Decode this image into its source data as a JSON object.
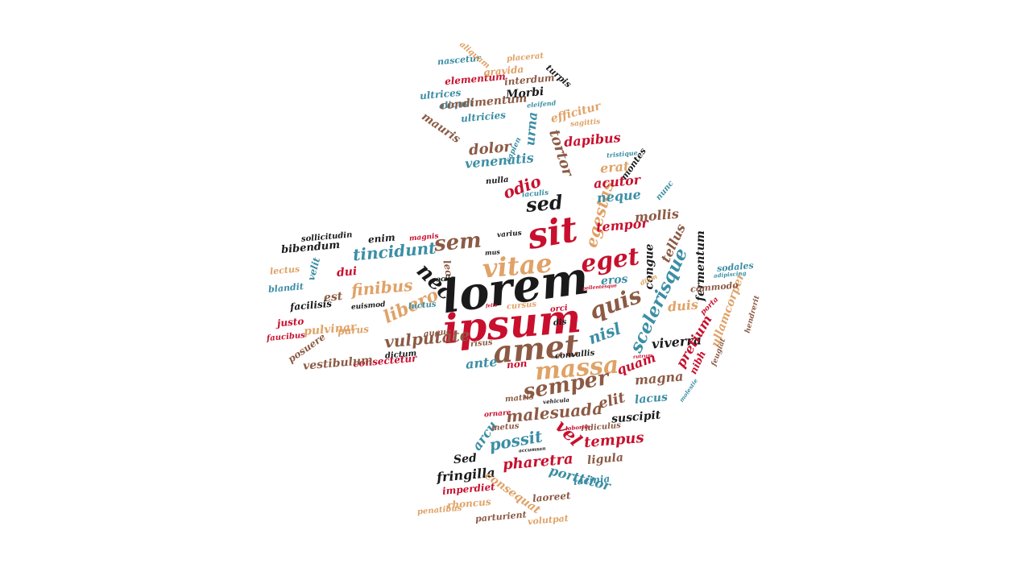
{
  "palette": {
    "red": "#c8102e",
    "brown": "#8c5a44",
    "tan": "#e0a266",
    "teal": "#3b8ea5",
    "black": "#1a1a1a"
  },
  "shape": "arrow-right",
  "words": [
    {
      "text": "lorem",
      "color": "black"
    },
    {
      "text": "ipsum",
      "color": "red"
    },
    {
      "text": "sit",
      "color": "red"
    },
    {
      "text": "amet",
      "color": "brown"
    },
    {
      "text": "vitae",
      "color": "tan"
    },
    {
      "text": "eget",
      "color": "red"
    },
    {
      "text": "sem",
      "color": "brown"
    },
    {
      "text": "nec",
      "color": "black"
    },
    {
      "text": "massa",
      "color": "tan"
    },
    {
      "text": "quis",
      "color": "brown"
    },
    {
      "text": "sed",
      "color": "black"
    },
    {
      "text": "semper",
      "color": "brown"
    },
    {
      "text": "libero",
      "color": "tan"
    },
    {
      "text": "vulputate",
      "color": "brown"
    },
    {
      "text": "tincidunt",
      "color": "teal"
    },
    {
      "text": "finibus",
      "color": "tan"
    },
    {
      "text": "nisl",
      "color": "teal"
    },
    {
      "text": "scelerisque",
      "color": "teal"
    },
    {
      "text": "egestas",
      "color": "tan"
    },
    {
      "text": "tortor",
      "color": "brown"
    },
    {
      "text": "odio",
      "color": "red"
    },
    {
      "text": "dolor",
      "color": "brown"
    },
    {
      "text": "venenatis",
      "color": "teal"
    },
    {
      "text": "dapibus",
      "color": "red"
    },
    {
      "text": "erat",
      "color": "tan"
    },
    {
      "text": "acutor",
      "color": "red"
    },
    {
      "text": "neque",
      "color": "teal"
    },
    {
      "text": "tempor",
      "color": "red"
    },
    {
      "text": "mollis",
      "color": "brown"
    },
    {
      "text": "tellus",
      "color": "brown"
    },
    {
      "text": "congue",
      "color": "black"
    },
    {
      "text": "fermentum",
      "color": "black"
    },
    {
      "text": "duis",
      "color": "tan"
    },
    {
      "text": "eros",
      "color": "teal"
    },
    {
      "text": "quam",
      "color": "red"
    },
    {
      "text": "viverra",
      "color": "black"
    },
    {
      "text": "magna",
      "color": "brown"
    },
    {
      "text": "pretium",
      "color": "red"
    },
    {
      "text": "nibh",
      "color": "red"
    },
    {
      "text": "ullamcorper",
      "color": "tan"
    },
    {
      "text": "elit",
      "color": "brown"
    },
    {
      "text": "malesuada",
      "color": "brown"
    },
    {
      "text": "lacus",
      "color": "teal"
    },
    {
      "text": "suscipit",
      "color": "black"
    },
    {
      "text": "vel",
      "color": "red"
    },
    {
      "text": "arcu",
      "color": "teal"
    },
    {
      "text": "possit",
      "color": "teal"
    },
    {
      "text": "tempus",
      "color": "red"
    },
    {
      "text": "pharetra",
      "color": "red"
    },
    {
      "text": "ligula",
      "color": "brown"
    },
    {
      "text": "Sed",
      "color": "black"
    },
    {
      "text": "fringilla",
      "color": "black"
    },
    {
      "text": "porttitor",
      "color": "teal"
    },
    {
      "text": "consequat",
      "color": "tan"
    },
    {
      "text": "imperdiet",
      "color": "red"
    },
    {
      "text": "rhoncus",
      "color": "tan"
    },
    {
      "text": "lacinia",
      "color": "teal"
    },
    {
      "text": "laoreet",
      "color": "brown"
    },
    {
      "text": "penatibus",
      "color": "tan"
    },
    {
      "text": "parturient",
      "color": "brown"
    },
    {
      "text": "volutpat",
      "color": "tan"
    },
    {
      "text": "ante",
      "color": "teal"
    },
    {
      "text": "non",
      "color": "red"
    },
    {
      "text": "consectetur",
      "color": "red"
    },
    {
      "text": "vestibulum",
      "color": "brown"
    },
    {
      "text": "pulvinar",
      "color": "tan"
    },
    {
      "text": "purus",
      "color": "tan"
    },
    {
      "text": "est",
      "color": "brown"
    },
    {
      "text": "dui",
      "color": "red"
    },
    {
      "text": "enim",
      "color": "black"
    },
    {
      "text": "bibendum",
      "color": "black"
    },
    {
      "text": "velit",
      "color": "teal"
    },
    {
      "text": "lectus",
      "color": "tan"
    },
    {
      "text": "blandit",
      "color": "teal"
    },
    {
      "text": "facilisis",
      "color": "black"
    },
    {
      "text": "justo",
      "color": "red"
    },
    {
      "text": "faucibus",
      "color": "red"
    },
    {
      "text": "posuere",
      "color": "brown"
    },
    {
      "text": "luctus",
      "color": "teal"
    },
    {
      "text": "leo",
      "color": "brown"
    },
    {
      "text": "orci",
      "color": "red"
    },
    {
      "text": "cursus",
      "color": "tan"
    },
    {
      "text": "risus",
      "color": "brown"
    },
    {
      "text": "dictum",
      "color": "black"
    },
    {
      "text": "convallis",
      "color": "black"
    },
    {
      "text": "mattis",
      "color": "brown"
    },
    {
      "text": "ornare",
      "color": "red"
    },
    {
      "text": "vehicula",
      "color": "black"
    },
    {
      "text": "metus",
      "color": "brown"
    },
    {
      "text": "ridiculus",
      "color": "brown"
    },
    {
      "text": "lobortis",
      "color": "red"
    },
    {
      "text": "accumsan",
      "color": "black"
    },
    {
      "text": "rutrum",
      "color": "red"
    },
    {
      "text": "molestie",
      "color": "teal"
    },
    {
      "text": "feugiat",
      "color": "brown"
    },
    {
      "text": "hendrerit",
      "color": "brown"
    },
    {
      "text": "porta",
      "color": "red"
    },
    {
      "text": "commodo",
      "color": "brown"
    },
    {
      "text": "sodales",
      "color": "teal"
    },
    {
      "text": "adipiscing",
      "color": "teal"
    },
    {
      "text": "diam",
      "color": "tan"
    },
    {
      "text": "pellentesque",
      "color": "red"
    },
    {
      "text": "euismod",
      "color": "black"
    },
    {
      "text": "sociis",
      "color": "black"
    },
    {
      "text": "mus",
      "color": "black"
    },
    {
      "text": "varius",
      "color": "black"
    },
    {
      "text": "magnis",
      "color": "red"
    },
    {
      "text": "sollicitudin",
      "color": "black"
    },
    {
      "text": "augue",
      "color": "brown"
    },
    {
      "text": "felis",
      "color": "red"
    },
    {
      "text": "dis",
      "color": "black"
    },
    {
      "text": "nulla",
      "color": "black"
    },
    {
      "text": "iaculis",
      "color": "teal"
    },
    {
      "text": "montes",
      "color": "black"
    },
    {
      "text": "nunc",
      "color": "teal"
    },
    {
      "text": "tristique",
      "color": "teal"
    },
    {
      "text": "sapien",
      "color": "teal"
    },
    {
      "text": "sagittis",
      "color": "tan"
    },
    {
      "text": "efficitur",
      "color": "tan"
    },
    {
      "text": "eleifend",
      "color": "teal"
    },
    {
      "text": "ultricies",
      "color": "teal"
    },
    {
      "text": "aliquet",
      "color": "teal"
    },
    {
      "text": "mauris",
      "color": "brown"
    },
    {
      "text": "urna",
      "color": "teal"
    },
    {
      "text": "condimentum",
      "color": "brown"
    },
    {
      "text": "Morbi",
      "color": "black"
    },
    {
      "text": "ultrices",
      "color": "teal"
    },
    {
      "text": "interdum",
      "color": "brown"
    },
    {
      "text": "elementum",
      "color": "red"
    },
    {
      "text": "gravida",
      "color": "tan"
    },
    {
      "text": "turpis",
      "color": "black"
    },
    {
      "text": "nascetur",
      "color": "teal"
    },
    {
      "text": "aliquam",
      "color": "tan"
    },
    {
      "text": "placerat",
      "color": "tan"
    },
    {
      "text": "natoque",
      "color": "brown"
    }
  ]
}
